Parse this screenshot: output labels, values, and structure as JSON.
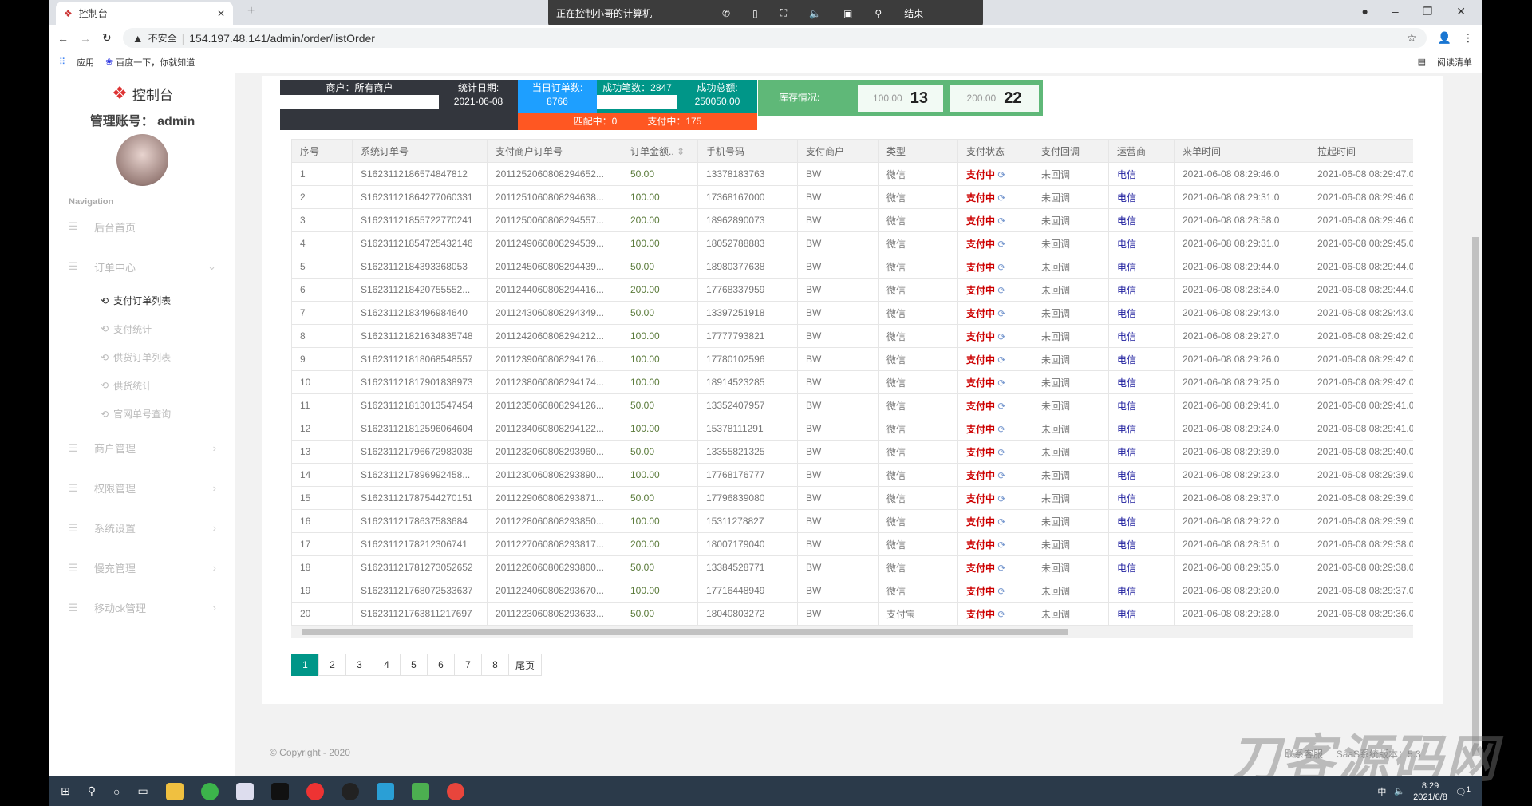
{
  "browser": {
    "tab_title": "控制台",
    "url_warning": "不安全",
    "url": "154.197.48.141/admin/order/listOrder",
    "bookmarks": [
      "应用",
      "百度一下，你就知道"
    ],
    "reading_list": "阅读清单"
  },
  "remote": {
    "title": "正在控制小哥的计算机",
    "end": "结束"
  },
  "sidebar": {
    "logo": "控制台",
    "account": "管理账号： admin",
    "nav_heading": "Navigation",
    "items": [
      {
        "label": "后台首页"
      },
      {
        "label": "订单中心",
        "expanded": true
      },
      {
        "label": "商户管理"
      },
      {
        "label": "权限管理"
      },
      {
        "label": "系统设置"
      },
      {
        "label": "慢充管理"
      },
      {
        "label": "移动ck管理"
      }
    ],
    "subitems": [
      {
        "label": "支付订单列表",
        "active": true
      },
      {
        "label": "支付统计"
      },
      {
        "label": "供货订单列表"
      },
      {
        "label": "供货统计"
      },
      {
        "label": "官网单号查询"
      }
    ]
  },
  "stats": {
    "merchant": "商户：所有商户",
    "date_label": "统计日期:",
    "date": "2021-06-08",
    "orders_label": "当日订单数:",
    "orders": "8766",
    "success_count": "成功笔数：2847",
    "success_total_label": "成功总额:",
    "success_total": "250050.00",
    "matching": "匹配中：0",
    "paying": "支付中：175",
    "stock_label": "库存情况:",
    "stock": [
      {
        "denom": "100.00",
        "count": "13"
      },
      {
        "denom": "200.00",
        "count": "22"
      }
    ]
  },
  "table": {
    "columns": [
      "序号",
      "系统订单号",
      "支付商户订单号",
      "订单金额..",
      "手机号码",
      "支付商户",
      "类型",
      "支付状态",
      "支付回调",
      "运营商",
      "来单时间",
      "拉起时间"
    ],
    "rows": [
      [
        "1",
        "S1623112186574847812",
        "2011252060808294652...",
        "50.00",
        "13378183763",
        "BW",
        "微信",
        "支付中",
        "未回调",
        "电信",
        "2021-06-08 08:29:46.0",
        "2021-06-08 08:29:47.0"
      ],
      [
        "2",
        "S1623112186427706033​1",
        "2011251060808294638...",
        "100.00",
        "17368167000",
        "BW",
        "微信",
        "支付中",
        "未回调",
        "电信",
        "2021-06-08 08:29:31.0",
        "2021-06-08 08:29:46.0"
      ],
      [
        "3",
        "S1623112185572277024​1",
        "2011250060808294557...",
        "200.00",
        "18962890073",
        "BW",
        "微信",
        "支付中",
        "未回调",
        "电信",
        "2021-06-08 08:28:58.0",
        "2021-06-08 08:29:46.0"
      ],
      [
        "4",
        "S1623112185472543214​6",
        "2011249060808294539...",
        "100.00",
        "18052788883",
        "BW",
        "微信",
        "支付中",
        "未回调",
        "电信",
        "2021-06-08 08:29:31.0",
        "2021-06-08 08:29:45.0"
      ],
      [
        "5",
        "S1623112184393368053",
        "2011245060808294439...",
        "50.00",
        "18980377638",
        "BW",
        "微信",
        "支付中",
        "未回调",
        "电信",
        "2021-06-08 08:29:44.0",
        "2021-06-08 08:29:44.0"
      ],
      [
        "6",
        "S16231121842075555​2...",
        "2011244060808294416...",
        "200.00",
        "17768337959",
        "BW",
        "微信",
        "支付中",
        "未回调",
        "电信",
        "2021-06-08 08:28:54.0",
        "2021-06-08 08:29:44.0"
      ],
      [
        "7",
        "S1623112183496984640",
        "2011243060808294349...",
        "50.00",
        "13397251918",
        "BW",
        "微信",
        "支付中",
        "未回调",
        "电信",
        "2021-06-08 08:29:43.0",
        "2021-06-08 08:29:43.0"
      ],
      [
        "8",
        "S1623112182163483574​8",
        "2011242060808294212...",
        "100.00",
        "17777793821",
        "BW",
        "微信",
        "支付中",
        "未回调",
        "电信",
        "2021-06-08 08:29:27.0",
        "2021-06-08 08:29:42.0"
      ],
      [
        "9",
        "S1623112181806854855​7",
        "2011239060808294176...",
        "100.00",
        "17780102596",
        "BW",
        "微信",
        "支付中",
        "未回调",
        "电信",
        "2021-06-08 08:29:26.0",
        "2021-06-08 08:29:42.0"
      ],
      [
        "10",
        "S1623112181790183897​3",
        "2011238060808294174...",
        "100.00",
        "18914523285",
        "BW",
        "微信",
        "支付中",
        "未回调",
        "电信",
        "2021-06-08 08:29:25.0",
        "2021-06-08 08:29:42.0"
      ],
      [
        "11",
        "S1623112181301354745​4",
        "2011235060808294126...",
        "50.00",
        "13352407957",
        "BW",
        "微信",
        "支付中",
        "未回调",
        "电信",
        "2021-06-08 08:29:41.0",
        "2021-06-08 08:29:41.0"
      ],
      [
        "12",
        "S1623112181259606460​4",
        "2011234060808294122...",
        "100.00",
        "15378111291",
        "BW",
        "微信",
        "支付中",
        "未回调",
        "电信",
        "2021-06-08 08:29:24.0",
        "2021-06-08 08:29:41.0"
      ],
      [
        "13",
        "S1623112179667298303​8",
        "2011232060808293960...",
        "50.00",
        "13355821325",
        "BW",
        "微信",
        "支付中",
        "未回调",
        "电信",
        "2021-06-08 08:29:39.0",
        "2021-06-08 08:29:40.0"
      ],
      [
        "14",
        "S16231121789699245​8...",
        "2011230060808293890...",
        "100.00",
        "17768176777",
        "BW",
        "微信",
        "支付中",
        "未回调",
        "电信",
        "2021-06-08 08:29:23.0",
        "2021-06-08 08:29:39.0"
      ],
      [
        "15",
        "S1623112178754427015​1",
        "2011229060808293871...",
        "50.00",
        "17796839080",
        "BW",
        "微信",
        "支付中",
        "未回调",
        "电信",
        "2021-06-08 08:29:37.0",
        "2021-06-08 08:29:39.0"
      ],
      [
        "16",
        "S1623112178637583684",
        "2011228060808293850...",
        "100.00",
        "15311278827",
        "BW",
        "微信",
        "支付中",
        "未回调",
        "电信",
        "2021-06-08 08:29:22.0",
        "2021-06-08 08:29:39.0"
      ],
      [
        "17",
        "S1623112178212306741",
        "2011227060808293817...",
        "200.00",
        "18007179040",
        "BW",
        "微信",
        "支付中",
        "未回调",
        "电信",
        "2021-06-08 08:28:51.0",
        "2021-06-08 08:29:38.0"
      ],
      [
        "18",
        "S1623112178127305265​2",
        "2011226060808293800...",
        "50.00",
        "13384528771",
        "BW",
        "微信",
        "支付中",
        "未回调",
        "电信",
        "2021-06-08 08:29:35.0",
        "2021-06-08 08:29:38.0"
      ],
      [
        "19",
        "S1623112176807253363​7",
        "2011224060808293670...",
        "100.00",
        "17716448949",
        "BW",
        "微信",
        "支付中",
        "未回调",
        "电信",
        "2021-06-08 08:29:20.0",
        "2021-06-08 08:29:37.0"
      ],
      [
        "20",
        "S1623112176381121769​7",
        "2011223060808293633...",
        "50.00",
        "18040803272",
        "BW",
        "支付宝",
        "支付中",
        "未回调",
        "电信",
        "2021-06-08 08:29:28.0",
        "2021-06-08 08:29:36.0"
      ]
    ]
  },
  "pagination": {
    "pages": [
      "1",
      "2",
      "3",
      "4",
      "5",
      "6",
      "7",
      "8"
    ],
    "current": "1",
    "last": "尾页"
  },
  "footer": {
    "copyright": "© Copyright - 2020",
    "contact": "联系客服",
    "version": "SaaS系统版本：5.3"
  },
  "watermark": "刀客源码网",
  "taskbar": {
    "time": "8:29",
    "date": "2021/6/8",
    "ime": "中",
    "notifications": "1"
  },
  "colors": {
    "dark": "#33363d",
    "blue": "#1e9fff",
    "teal": "#009688",
    "orange": "#ff5722",
    "green": "#5fb878",
    "paying": "#cc0000",
    "active_page": "#009688"
  }
}
